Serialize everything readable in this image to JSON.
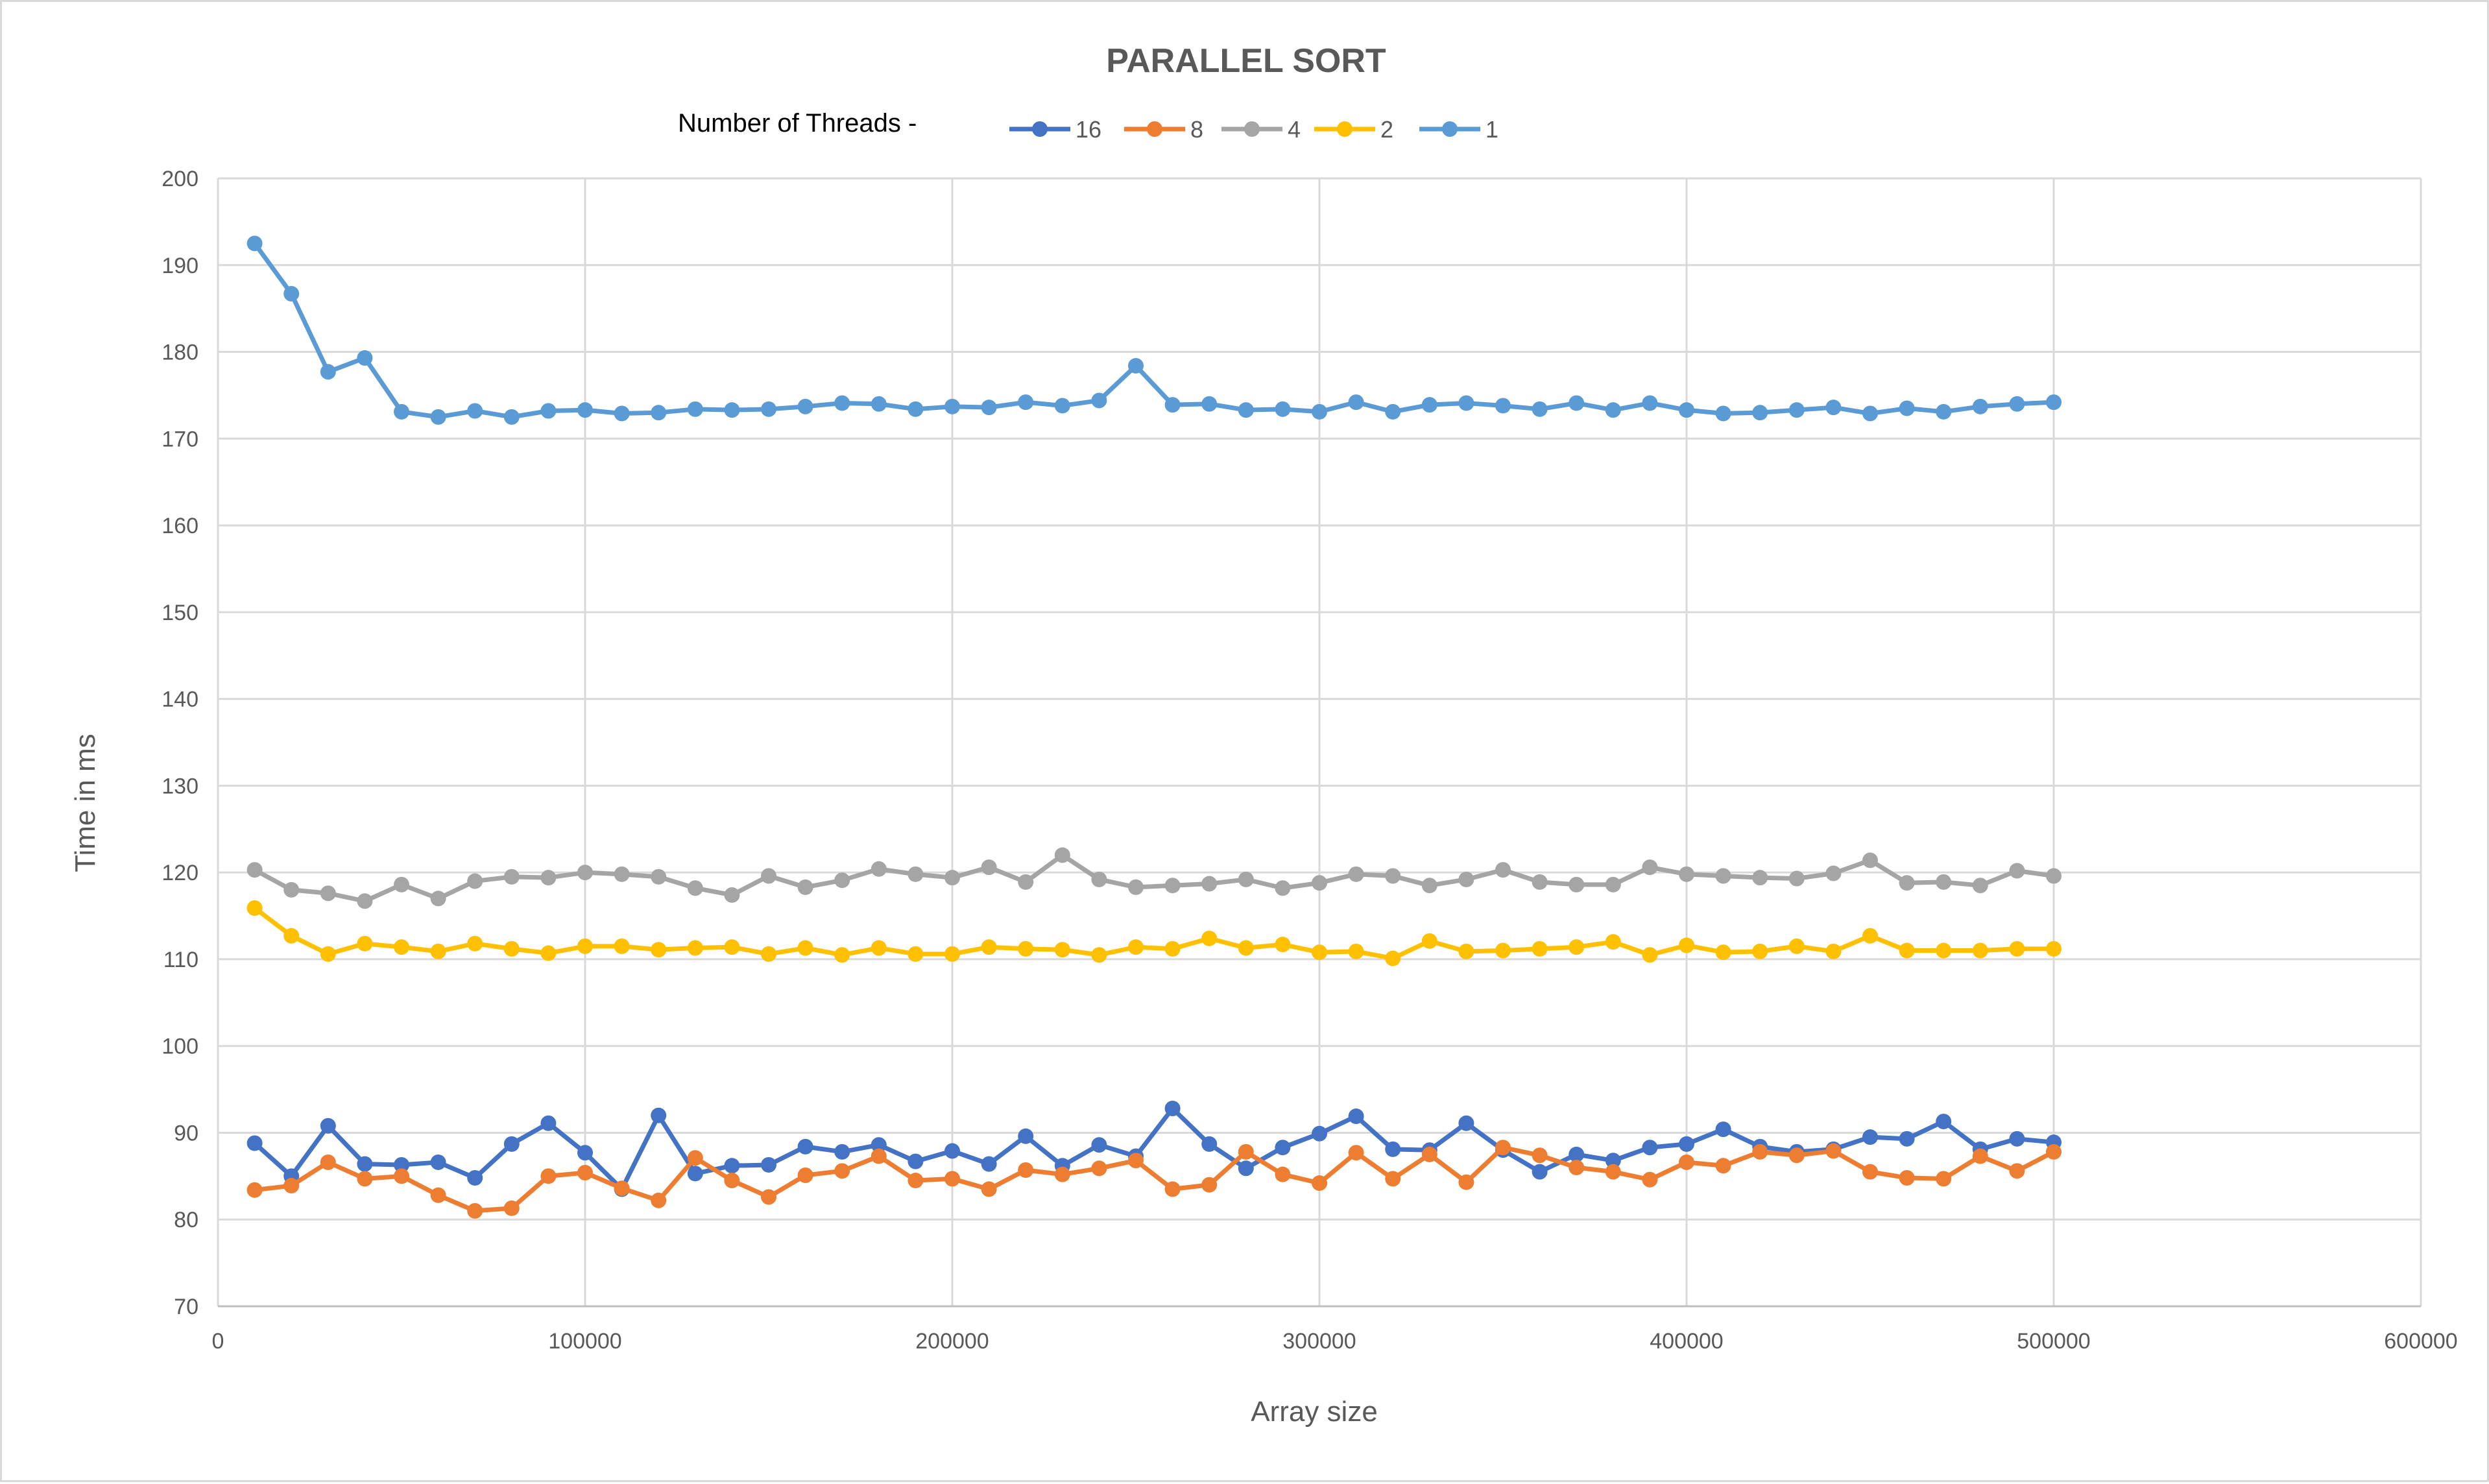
{
  "chart_data": {
    "type": "line",
    "title": "PARALLEL SORT",
    "legend_prefix": "Number of Threads -",
    "legend_position": "top",
    "xlabel": "Array size",
    "ylabel": "Time in ms",
    "xlim": [
      0,
      600000
    ],
    "ylim": [
      70,
      200
    ],
    "x_ticks": [
      "0",
      "100000",
      "200000",
      "300000",
      "400000",
      "500000",
      "600000"
    ],
    "y_ticks": [
      "70",
      "80",
      "90",
      "100",
      "110",
      "120",
      "130",
      "140",
      "150",
      "160",
      "170",
      "180",
      "190",
      "200"
    ],
    "grid": true,
    "x": [
      10000,
      20000,
      30000,
      40000,
      50000,
      60000,
      70000,
      80000,
      90000,
      100000,
      110000,
      120000,
      130000,
      140000,
      150000,
      160000,
      170000,
      180000,
      190000,
      200000,
      210000,
      220000,
      230000,
      240000,
      250000,
      260000,
      270000,
      280000,
      290000,
      300000,
      310000,
      320000,
      330000,
      340000,
      350000,
      360000,
      370000,
      380000,
      390000,
      400000,
      410000,
      420000,
      430000,
      440000,
      450000,
      460000,
      470000,
      480000,
      490000,
      500000
    ],
    "series": [
      {
        "name": "16",
        "color": "#4472C4",
        "values": [
          88.8,
          85.0,
          90.8,
          86.4,
          86.3,
          86.6,
          84.8,
          88.7,
          91.1,
          87.7,
          83.5,
          92.0,
          85.3,
          86.2,
          86.3,
          88.4,
          87.8,
          88.6,
          86.7,
          87.9,
          86.4,
          89.6,
          86.2,
          88.6,
          87.3,
          92.8,
          88.7,
          85.9,
          88.3,
          89.9,
          91.9,
          88.1,
          88.0,
          91.1,
          88.0,
          85.5,
          87.5,
          86.8,
          88.3,
          88.7,
          90.4,
          88.4,
          87.8,
          88.1,
          89.5,
          89.3,
          91.3,
          88.1,
          89.3,
          88.9
        ]
      },
      {
        "name": "8",
        "color": "#ED7D31",
        "values": [
          83.4,
          83.9,
          86.6,
          84.7,
          85.0,
          82.8,
          81.0,
          81.3,
          85.0,
          85.4,
          83.6,
          82.2,
          87.1,
          84.5,
          82.6,
          85.1,
          85.6,
          87.3,
          84.5,
          84.7,
          83.5,
          85.7,
          85.2,
          85.9,
          86.8,
          83.5,
          84.0,
          87.8,
          85.2,
          84.2,
          87.7,
          84.7,
          87.5,
          84.3,
          88.3,
          87.4,
          86.0,
          85.5,
          84.6,
          86.6,
          86.2,
          87.8,
          87.4,
          87.9,
          85.5,
          84.8,
          84.7,
          87.3,
          85.6,
          87.8
        ]
      },
      {
        "name": "4",
        "color": "#A5A5A5",
        "values": [
          120.3,
          118.0,
          117.6,
          116.7,
          118.6,
          117.0,
          119.0,
          119.5,
          119.4,
          120.0,
          119.8,
          119.5,
          118.2,
          117.4,
          119.6,
          118.3,
          119.1,
          120.4,
          119.8,
          119.4,
          120.6,
          118.9,
          122.0,
          119.2,
          118.3,
          118.5,
          118.7,
          119.2,
          118.2,
          118.8,
          119.8,
          119.6,
          118.5,
          119.2,
          120.3,
          118.9,
          118.6,
          118.6,
          120.6,
          119.8,
          119.6,
          119.4,
          119.3,
          119.9,
          121.4,
          118.8,
          118.9,
          118.5,
          120.2,
          119.6
        ]
      },
      {
        "name": "2",
        "color": "#FFC000",
        "values": [
          115.9,
          112.7,
          110.6,
          111.8,
          111.4,
          110.9,
          111.8,
          111.2,
          110.7,
          111.5,
          111.5,
          111.1,
          111.3,
          111.4,
          110.6,
          111.3,
          110.5,
          111.3,
          110.6,
          110.6,
          111.4,
          111.2,
          111.1,
          110.5,
          111.4,
          111.2,
          112.4,
          111.3,
          111.7,
          110.8,
          110.9,
          110.1,
          112.1,
          110.9,
          111.0,
          111.2,
          111.4,
          112.0,
          110.5,
          111.6,
          110.8,
          110.9,
          111.5,
          110.9,
          112.7,
          111.0,
          111.0,
          111.0,
          111.2,
          111.2
        ]
      },
      {
        "name": "1",
        "color": "#5B9BD5",
        "values": [
          192.5,
          186.7,
          177.7,
          179.3,
          173.1,
          172.5,
          173.2,
          172.5,
          173.2,
          173.3,
          172.9,
          173.0,
          173.4,
          173.3,
          173.4,
          173.7,
          174.1,
          174.0,
          173.4,
          173.7,
          173.6,
          174.2,
          173.8,
          174.4,
          178.4,
          173.9,
          174.0,
          173.3,
          173.4,
          173.1,
          174.2,
          173.1,
          173.9,
          174.1,
          173.8,
          173.4,
          174.1,
          173.3,
          174.1,
          173.3,
          172.9,
          173.0,
          173.3,
          173.6,
          172.9,
          173.5,
          173.1,
          173.7,
          174.0,
          174.2
        ]
      }
    ]
  }
}
